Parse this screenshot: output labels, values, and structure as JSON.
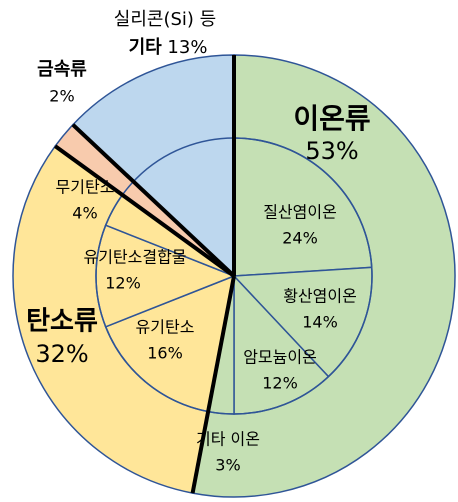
{
  "chart_data": {
    "type": "nested-pie",
    "categories": [
      "이온류",
      "탄소류",
      "금속류",
      "기타"
    ],
    "values": [
      53,
      32,
      2,
      13
    ],
    "value_labels": [
      "53%",
      "32%",
      "2%",
      "13%"
    ],
    "colors": [
      "#c5e0b4",
      "#ffe699",
      "#f8cbad",
      "#bdd7ee"
    ],
    "annotation": "실리콘(Si) 등",
    "inner_categories": [
      "질산염이온",
      "황산염이온",
      "암모늄이온",
      "기타 이온",
      "유기탄소",
      "유기탄소결합물",
      "무기탄소"
    ],
    "inner_values": [
      24,
      14,
      12,
      3,
      16,
      12,
      4
    ],
    "inner_value_labels": [
      "24%",
      "14%",
      "12%",
      "3%",
      "16%",
      "12%",
      "4%"
    ],
    "inner_colors": [
      "#c5e0b4",
      "#c5e0b4",
      "#c5e0b4",
      "#c5e0b4",
      "#ffe699",
      "#ffe699",
      "#ffe699"
    ]
  }
}
